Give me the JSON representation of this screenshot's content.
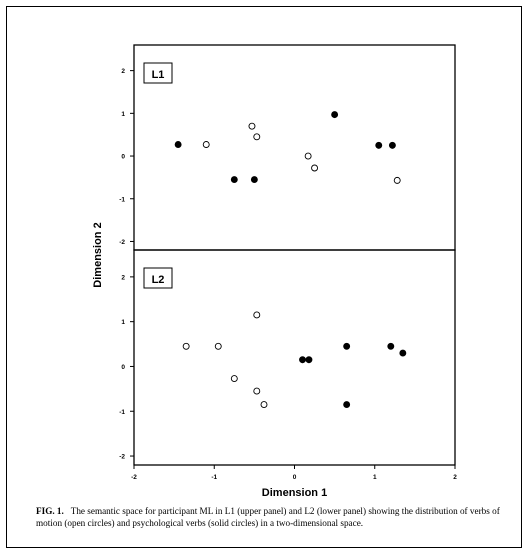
{
  "caption": {
    "label": "FIG. 1.",
    "text": "The semantic space for participant ML in L1 (upper panel) and L2 (lower panel) showing the distribution of verbs of motion (open circles) and psychological verbs (solid circles) in a two-dimensional space."
  },
  "chart_data": [
    {
      "type": "scatter",
      "panel_label": "L1",
      "xlabel": "Dimension 1",
      "ylabel": "Dimension 2",
      "xlim": [
        -2,
        2
      ],
      "ylim": [
        -2.2,
        2.6
      ],
      "x_ticks": [
        "-2",
        "-1",
        "0",
        "1",
        "2"
      ],
      "y_ticks": [
        "2",
        "1",
        "0",
        "-1",
        "-2"
      ],
      "series": [
        {
          "marker": "open-circle",
          "points": [
            [
              -1.1,
              0.27
            ],
            [
              -0.53,
              0.7
            ],
            [
              -0.47,
              0.45
            ],
            [
              0.17,
              0.0
            ],
            [
              0.25,
              -0.28
            ],
            [
              1.28,
              -0.57
            ]
          ]
        },
        {
          "marker": "solid-circle",
          "points": [
            [
              -1.45,
              0.27
            ],
            [
              -0.75,
              -0.55
            ],
            [
              -0.5,
              -0.55
            ],
            [
              0.5,
              0.97
            ],
            [
              1.05,
              0.25
            ],
            [
              1.22,
              0.25
            ]
          ]
        }
      ]
    },
    {
      "type": "scatter",
      "panel_label": "L2",
      "xlabel": "Dimension 1",
      "ylabel": "Dimension 2",
      "xlim": [
        -2,
        2
      ],
      "ylim": [
        -2.2,
        2.6
      ],
      "x_ticks": [
        "-2",
        "-1",
        "0",
        "1",
        "2"
      ],
      "y_ticks": [
        "2",
        "1",
        "0",
        "-1",
        "-2"
      ],
      "series": [
        {
          "marker": "open-circle",
          "points": [
            [
              -1.35,
              0.45
            ],
            [
              -0.95,
              0.45
            ],
            [
              -0.75,
              -0.27
            ],
            [
              -0.47,
              1.15
            ],
            [
              -0.47,
              -0.55
            ],
            [
              -0.38,
              -0.85
            ]
          ]
        },
        {
          "marker": "solid-circle",
          "points": [
            [
              0.1,
              0.15
            ],
            [
              0.18,
              0.15
            ],
            [
              0.65,
              0.45
            ],
            [
              0.65,
              -0.85
            ],
            [
              1.2,
              0.45
            ],
            [
              1.35,
              0.3
            ]
          ]
        }
      ]
    }
  ]
}
